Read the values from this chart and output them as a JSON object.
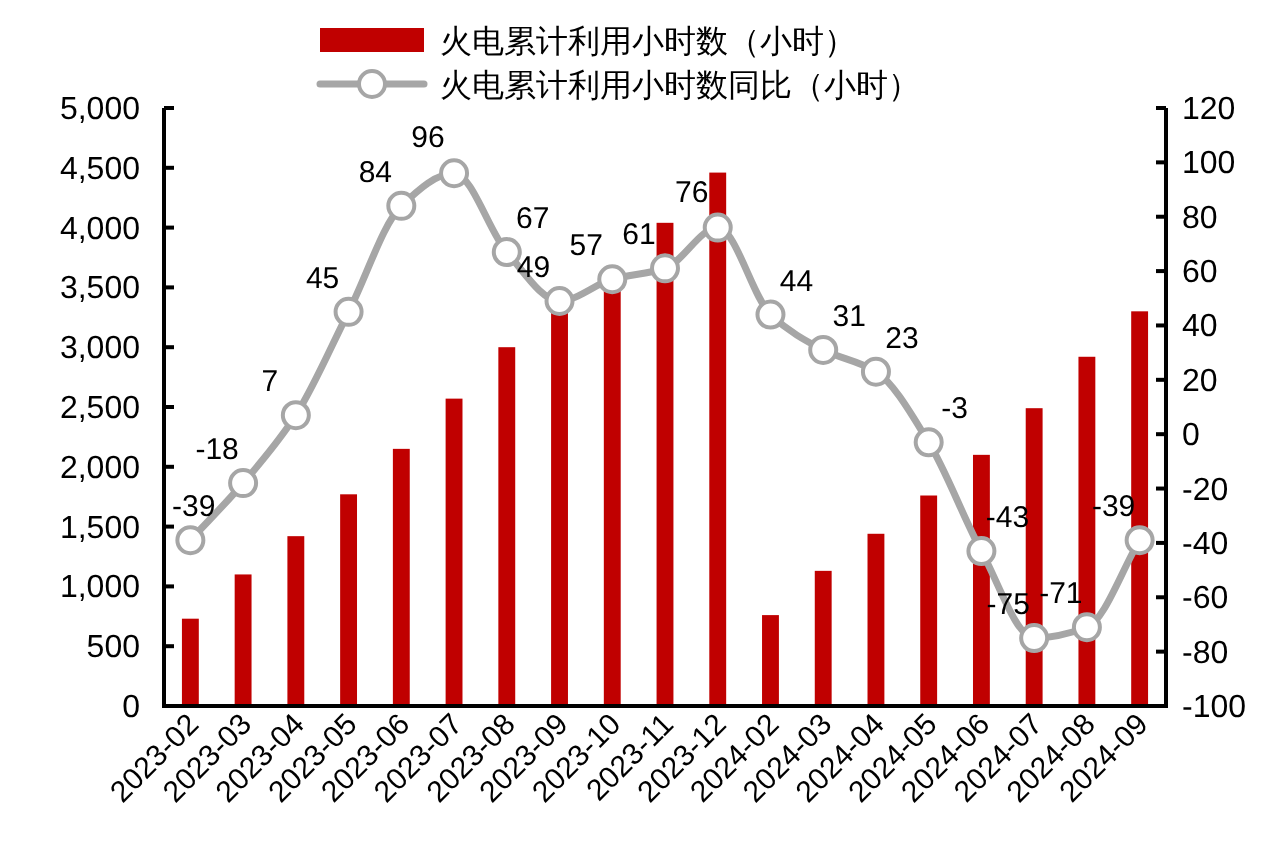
{
  "chart_data": {
    "type": "bar",
    "categories": [
      "2023-02",
      "2023-03",
      "2023-04",
      "2023-05",
      "2023-06",
      "2023-07",
      "2023-08",
      "2023-09",
      "2023-10",
      "2023-11",
      "2023-12",
      "2024-02",
      "2024-03",
      "2024-04",
      "2024-05",
      "2024-06",
      "2024-07",
      "2024-08",
      "2024-09"
    ],
    "series": [
      {
        "name": "火电累计利用小时数（小时）",
        "color": "#c00000",
        "values": [
          730,
          1100,
          1420,
          1770,
          2150,
          2570,
          3000,
          3290,
          3480,
          4040,
          4460,
          760,
          1130,
          1440,
          1760,
          2100,
          2490,
          2920,
          3300
        ]
      },
      {
        "name": "火电累计利用小时数同比（小时）",
        "type": "line",
        "axis": "y2",
        "color": "#a6a6a6",
        "values": [
          -39,
          -18,
          7,
          45,
          84,
          96,
          67,
          49,
          57,
          61,
          76,
          44,
          31,
          23,
          -3,
          -43,
          -75,
          -71,
          -39
        ],
        "value_labels": [
          "-39",
          "-18",
          "7",
          "45",
          "84",
          "96",
          "67",
          "49",
          "57",
          "61",
          "76",
          "44",
          "31",
          "23",
          "-3",
          "-43",
          "-75",
          "-71",
          "-39"
        ]
      }
    ],
    "ylim": [
      0,
      5000
    ],
    "yticks": [
      0,
      500,
      {
        "value": 1000,
        "label": "1,000"
      },
      {
        "value": 1500,
        "label": "1,500"
      },
      {
        "value": 2000,
        "label": "2,000"
      },
      {
        "value": 2500,
        "label": "2,500"
      },
      {
        "value": 3000,
        "label": "3,000"
      },
      {
        "value": 3500,
        "label": "3,500"
      },
      {
        "value": 4000,
        "label": "4,000"
      },
      {
        "value": 4500,
        "label": "4,500"
      },
      {
        "value": 5000,
        "label": "5,000"
      }
    ],
    "y2lim": [
      -100,
      120
    ],
    "y2ticks": [
      -100,
      -80,
      -60,
      -40,
      -20,
      0,
      20,
      40,
      60,
      80,
      100,
      120
    ],
    "legend": "top",
    "marker": "circle",
    "line_style": "solid"
  }
}
